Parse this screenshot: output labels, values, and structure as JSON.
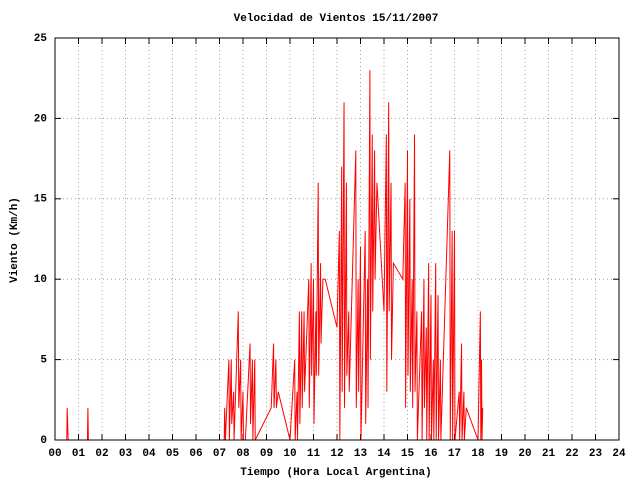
{
  "chart_data": {
    "type": "line",
    "title": "Velocidad de Vientos 15/11/2007",
    "x_label": "Tiempo (Hora Local Argentina)",
    "y_label": "Viento (Km/h)",
    "color": "#ff0000",
    "grid": true,
    "xlim": [
      0,
      24
    ],
    "ylim": [
      0,
      25
    ],
    "xticks": [
      {
        "value": 0,
        "label": "00"
      },
      {
        "value": 1,
        "label": "01"
      },
      {
        "value": 2,
        "label": "02"
      },
      {
        "value": 3,
        "label": "03"
      },
      {
        "value": 4,
        "label": "04"
      },
      {
        "value": 5,
        "label": "05"
      },
      {
        "value": 6,
        "label": "06"
      },
      {
        "value": 7,
        "label": "07"
      },
      {
        "value": 8,
        "label": "08"
      },
      {
        "value": 9,
        "label": "09"
      },
      10,
      11,
      12,
      13,
      14,
      15,
      16,
      17,
      18,
      19,
      20,
      21,
      22,
      23,
      24
    ],
    "yticks": [
      0,
      5,
      10,
      15,
      20,
      25
    ],
    "x": [
      0.5,
      0.52,
      0.56,
      1.38,
      1.4,
      1.42,
      7.2,
      7.22,
      7.25,
      7.4,
      7.42,
      7.5,
      7.52,
      7.6,
      7.62,
      7.8,
      7.82,
      7.9,
      7.92,
      8.0,
      8.02,
      8.1,
      8.3,
      8.32,
      8.4,
      8.42,
      8.5,
      8.52,
      9.2,
      9.3,
      9.32,
      9.4,
      9.42,
      9.5,
      10.0,
      10.2,
      10.22,
      10.3,
      10.32,
      10.4,
      10.42,
      10.5,
      10.52,
      10.6,
      10.62,
      10.8,
      10.82,
      10.9,
      10.92,
      11.0,
      11.02,
      11.1,
      11.12,
      11.2,
      11.22,
      11.3,
      11.32,
      11.4,
      11.42,
      11.5,
      12.0,
      12.1,
      12.12,
      12.2,
      12.22,
      12.3,
      12.32,
      12.4,
      12.42,
      12.5,
      12.52,
      12.8,
      12.82,
      12.9,
      12.92,
      13.0,
      13.02,
      13.2,
      13.22,
      13.3,
      13.32,
      13.4,
      13.42,
      13.5,
      13.52,
      13.6,
      13.62,
      13.7,
      14.0,
      14.1,
      14.12,
      14.2,
      14.22,
      14.3,
      14.32,
      14.4,
      14.8,
      14.9,
      14.92,
      15.0,
      15.02,
      15.1,
      15.12,
      15.2,
      15.22,
      15.3,
      15.32,
      15.4,
      15.42,
      15.6,
      15.62,
      15.7,
      15.72,
      15.8,
      15.82,
      15.9,
      15.92,
      16.0,
      16.02,
      16.1,
      16.12,
      16.2,
      16.22,
      16.3,
      16.32,
      16.4,
      16.42,
      16.8,
      16.82,
      16.9,
      16.92,
      17.0,
      17.02,
      17.2,
      17.22,
      17.3,
      17.32,
      17.4,
      17.42,
      17.5,
      18.0,
      18.1,
      18.12,
      18.15,
      18.17,
      18.2
    ],
    "values": [
      0,
      2,
      0,
      0,
      2,
      0,
      0,
      2,
      0,
      5,
      0,
      5,
      1,
      3,
      0,
      8,
      2,
      5,
      0,
      3,
      0,
      0,
      6,
      1,
      5,
      0,
      5,
      0,
      2,
      6,
      2,
      5,
      2,
      3,
      0,
      5,
      0,
      3,
      0,
      8,
      1,
      8,
      2,
      8,
      3,
      10,
      2,
      11,
      4,
      10,
      1,
      8,
      4,
      16,
      4,
      11,
      6,
      10,
      10,
      10,
      7,
      13,
      0,
      17,
      3,
      21,
      2,
      16,
      4,
      8,
      3,
      18,
      2,
      10,
      3,
      12,
      0,
      13,
      1,
      10,
      2,
      23,
      5,
      19,
      8,
      18,
      10,
      16,
      8,
      19,
      3,
      21,
      8,
      16,
      5,
      11,
      10,
      16,
      2,
      18,
      4,
      15,
      3,
      10,
      2,
      19,
      3,
      8,
      0,
      8,
      0,
      10,
      2,
      7,
      0,
      11,
      0,
      9,
      0,
      5,
      0,
      11,
      0,
      9,
      0,
      5,
      0,
      18,
      0,
      13,
      0,
      13,
      0,
      3,
      0,
      6,
      0,
      3,
      0,
      2,
      0,
      8,
      0,
      5,
      0,
      2
    ]
  }
}
